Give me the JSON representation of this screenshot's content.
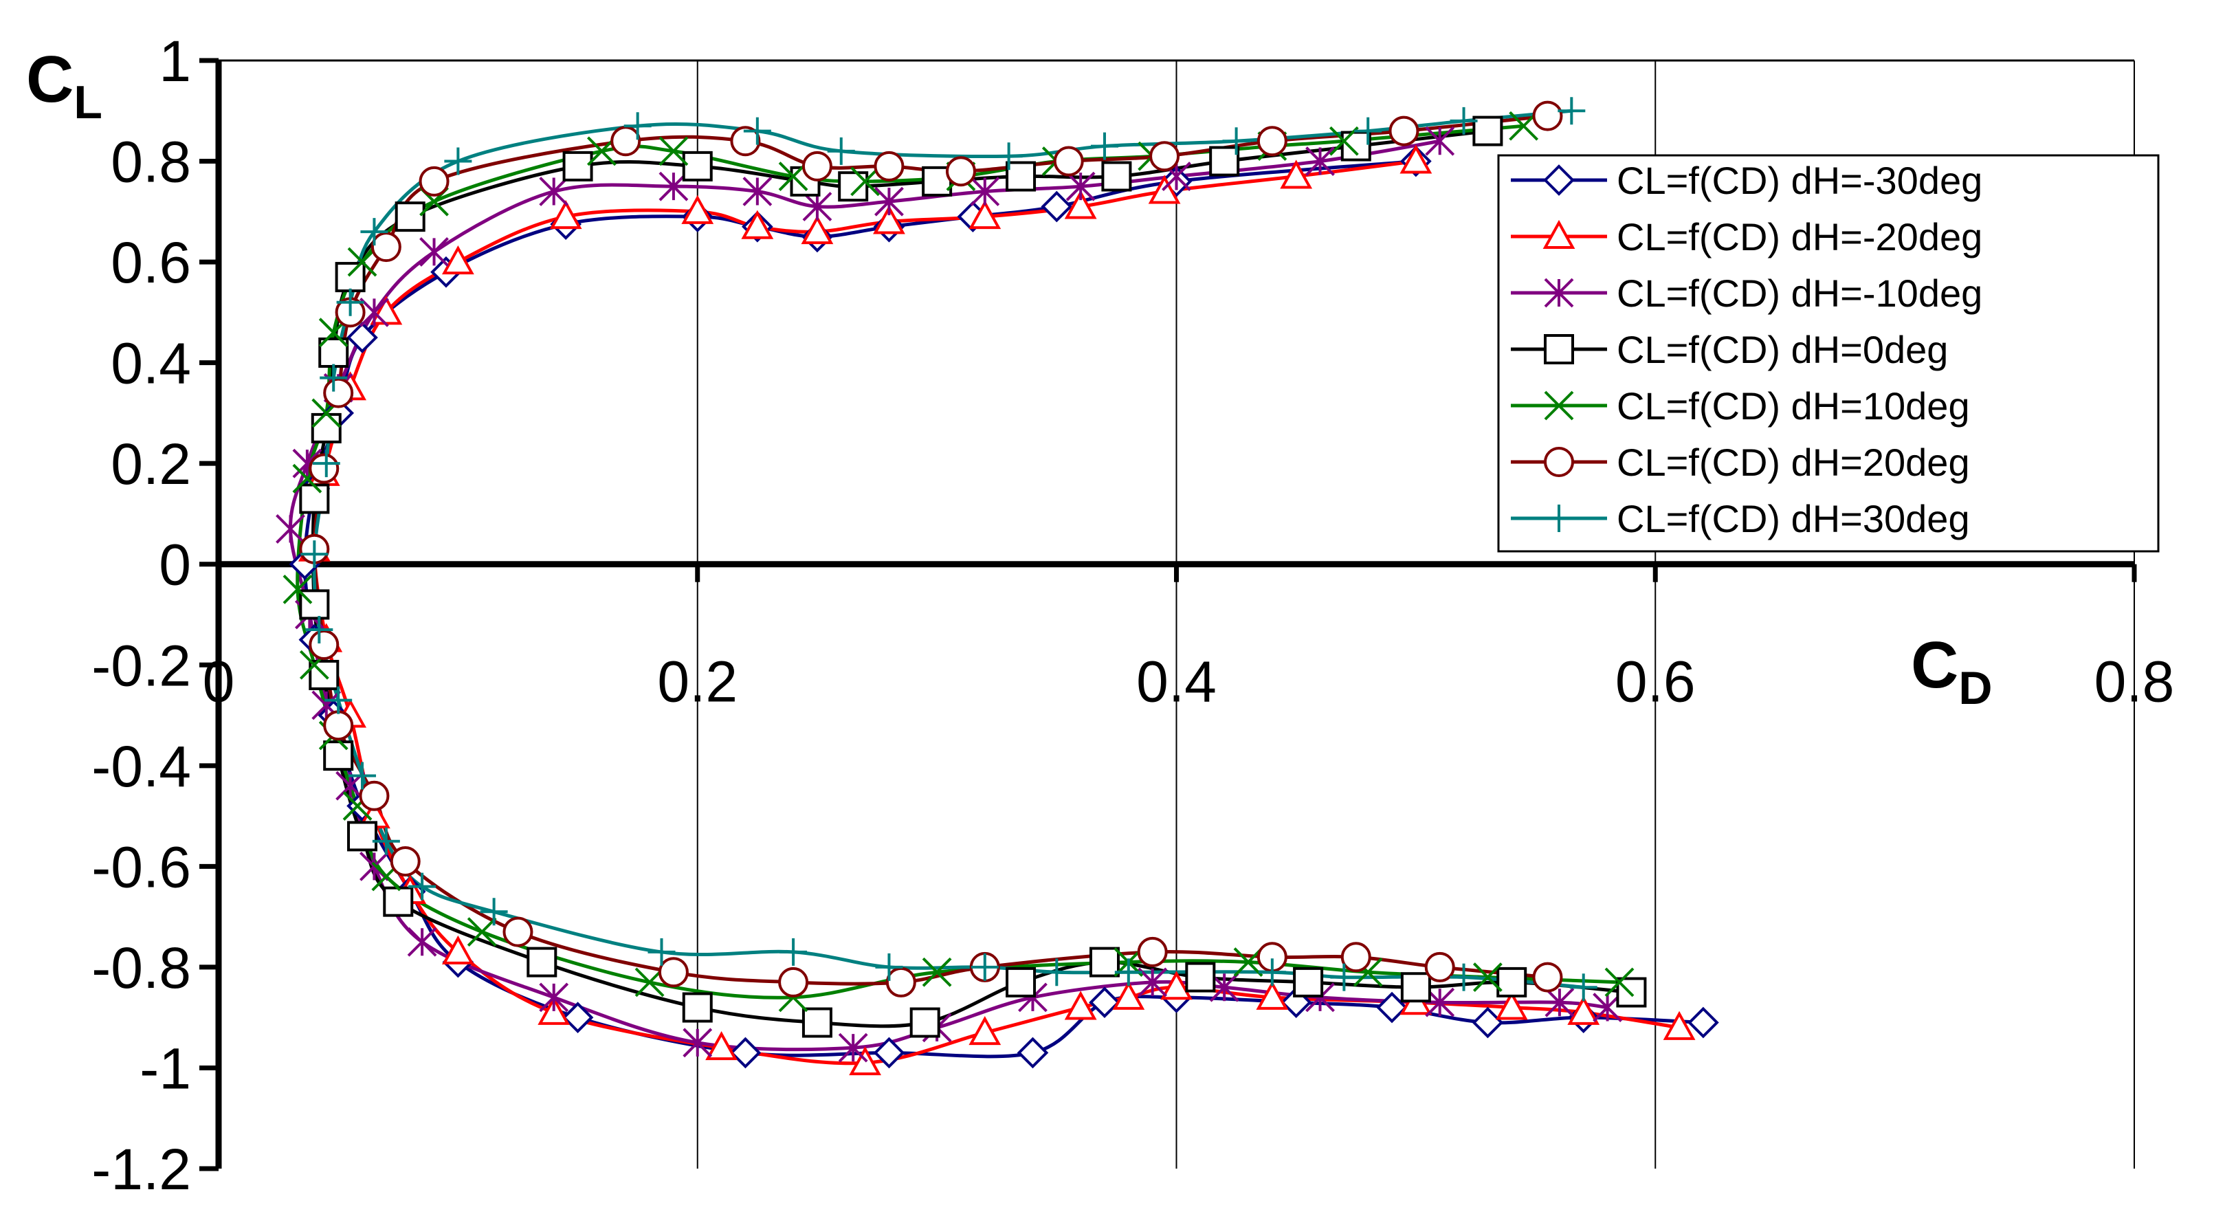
{
  "chart_data": {
    "type": "line",
    "title": "",
    "xlabel": "C",
    "xlabel_sub": "D",
    "ylabel": "C",
    "ylabel_sub": "L",
    "xlim": [
      0,
      0.8
    ],
    "ylim": [
      -1.2,
      1.0
    ],
    "x_ticks": [
      0,
      0.2,
      0.4,
      0.6,
      0.8
    ],
    "x_tick_labels": [
      "0",
      "0.2",
      "0.4",
      "0.6",
      "0.8"
    ],
    "y_ticks": [
      1,
      0.8,
      0.6,
      0.4,
      0.2,
      0,
      -0.2,
      -0.4,
      -0.6,
      -0.8,
      -1,
      -1.2
    ],
    "y_tick_labels": [
      "1",
      "0.8",
      "0.6",
      "0.4",
      "0.2",
      "0",
      "-0.2",
      "-0.4",
      "-0.6",
      "-0.8",
      "-1",
      "-1.2"
    ],
    "grid": "vertical",
    "legend_position": "top-right",
    "series": [
      {
        "name": "CL=f(CD) dH=-30deg",
        "color": "#000080",
        "marker": "diamond",
        "points": [
          [
            0.5,
            0.8
          ],
          [
            0.4,
            0.76
          ],
          [
            0.35,
            0.71
          ],
          [
            0.315,
            0.69
          ],
          [
            0.28,
            0.67
          ],
          [
            0.25,
            0.65
          ],
          [
            0.225,
            0.67
          ],
          [
            0.2,
            0.69
          ],
          [
            0.145,
            0.675
          ],
          [
            0.095,
            0.58
          ],
          [
            0.06,
            0.45
          ],
          [
            0.05,
            0.3
          ],
          [
            0.04,
            0.15
          ],
          [
            0.036,
            0
          ],
          [
            0.04,
            -0.15
          ],
          [
            0.048,
            -0.3
          ],
          [
            0.06,
            -0.48
          ],
          [
            0.08,
            -0.65
          ],
          [
            0.1,
            -0.79
          ],
          [
            0.15,
            -0.9
          ],
          [
            0.22,
            -0.97
          ],
          [
            0.28,
            -0.97
          ],
          [
            0.34,
            -0.97
          ],
          [
            0.37,
            -0.87
          ],
          [
            0.4,
            -0.86
          ],
          [
            0.45,
            -0.87
          ],
          [
            0.49,
            -0.88
          ],
          [
            0.53,
            -0.91
          ],
          [
            0.57,
            -0.9
          ],
          [
            0.62,
            -0.91
          ]
        ]
      },
      {
        "name": "CL=f(CD) dH=-20deg",
        "color": "#ff0000",
        "marker": "triangle",
        "points": [
          [
            0.5,
            0.8
          ],
          [
            0.45,
            0.77
          ],
          [
            0.395,
            0.74
          ],
          [
            0.36,
            0.71
          ],
          [
            0.32,
            0.69
          ],
          [
            0.28,
            0.68
          ],
          [
            0.25,
            0.66
          ],
          [
            0.225,
            0.67
          ],
          [
            0.2,
            0.7
          ],
          [
            0.145,
            0.69
          ],
          [
            0.1,
            0.6
          ],
          [
            0.07,
            0.5
          ],
          [
            0.055,
            0.35
          ],
          [
            0.044,
            0.18
          ],
          [
            0.04,
            0.03
          ],
          [
            0.045,
            -0.15
          ],
          [
            0.055,
            -0.3
          ],
          [
            0.065,
            -0.5
          ],
          [
            0.08,
            -0.65
          ],
          [
            0.1,
            -0.77
          ],
          [
            0.14,
            -0.89
          ],
          [
            0.21,
            -0.96
          ],
          [
            0.27,
            -0.99
          ],
          [
            0.32,
            -0.93
          ],
          [
            0.36,
            -0.88
          ],
          [
            0.38,
            -0.86
          ],
          [
            0.4,
            -0.84
          ],
          [
            0.44,
            -0.86
          ],
          [
            0.5,
            -0.87
          ],
          [
            0.54,
            -0.88
          ],
          [
            0.57,
            -0.89
          ],
          [
            0.61,
            -0.92
          ]
        ]
      },
      {
        "name": "CL=f(CD) dH=-10deg",
        "color": "#800080",
        "marker": "asterisk",
        "points": [
          [
            0.51,
            0.84
          ],
          [
            0.46,
            0.8
          ],
          [
            0.4,
            0.77
          ],
          [
            0.36,
            0.75
          ],
          [
            0.32,
            0.74
          ],
          [
            0.28,
            0.72
          ],
          [
            0.25,
            0.71
          ],
          [
            0.225,
            0.74
          ],
          [
            0.19,
            0.75
          ],
          [
            0.14,
            0.74
          ],
          [
            0.09,
            0.62
          ],
          [
            0.065,
            0.5
          ],
          [
            0.05,
            0.35
          ],
          [
            0.037,
            0.2
          ],
          [
            0.03,
            0.07
          ],
          [
            0.038,
            -0.1
          ],
          [
            0.045,
            -0.28
          ],
          [
            0.055,
            -0.44
          ],
          [
            0.065,
            -0.6
          ],
          [
            0.085,
            -0.75
          ],
          [
            0.14,
            -0.86
          ],
          [
            0.2,
            -0.95
          ],
          [
            0.265,
            -0.96
          ],
          [
            0.3,
            -0.92
          ],
          [
            0.34,
            -0.86
          ],
          [
            0.39,
            -0.83
          ],
          [
            0.42,
            -0.84
          ],
          [
            0.46,
            -0.86
          ],
          [
            0.51,
            -0.87
          ],
          [
            0.56,
            -0.87
          ],
          [
            0.58,
            -0.88
          ]
        ]
      },
      {
        "name": "CL=f(CD) dH=0deg",
        "color": "#000000",
        "marker": "square",
        "points": [
          [
            0.53,
            0.86
          ],
          [
            0.475,
            0.83
          ],
          [
            0.42,
            0.8
          ],
          [
            0.375,
            0.77
          ],
          [
            0.335,
            0.77
          ],
          [
            0.3,
            0.76
          ],
          [
            0.265,
            0.75
          ],
          [
            0.245,
            0.76
          ],
          [
            0.2,
            0.79
          ],
          [
            0.15,
            0.79
          ],
          [
            0.08,
            0.69
          ],
          [
            0.055,
            0.57
          ],
          [
            0.048,
            0.42
          ],
          [
            0.045,
            0.27
          ],
          [
            0.04,
            0.13
          ],
          [
            0.04,
            -0.08
          ],
          [
            0.044,
            -0.22
          ],
          [
            0.05,
            -0.38
          ],
          [
            0.06,
            -0.54
          ],
          [
            0.075,
            -0.67
          ],
          [
            0.135,
            -0.79
          ],
          [
            0.2,
            -0.88
          ],
          [
            0.25,
            -0.91
          ],
          [
            0.295,
            -0.91
          ],
          [
            0.335,
            -0.83
          ],
          [
            0.37,
            -0.79
          ],
          [
            0.41,
            -0.82
          ],
          [
            0.455,
            -0.83
          ],
          [
            0.5,
            -0.84
          ],
          [
            0.54,
            -0.83
          ],
          [
            0.59,
            -0.85
          ]
        ]
      },
      {
        "name": "CL=f(CD) dH=10deg",
        "color": "#008000",
        "marker": "x",
        "points": [
          [
            0.545,
            0.87
          ],
          [
            0.47,
            0.84
          ],
          [
            0.44,
            0.83
          ],
          [
            0.39,
            0.81
          ],
          [
            0.35,
            0.8
          ],
          [
            0.31,
            0.77
          ],
          [
            0.27,
            0.76
          ],
          [
            0.24,
            0.77
          ],
          [
            0.19,
            0.82
          ],
          [
            0.16,
            0.82
          ],
          [
            0.09,
            0.72
          ],
          [
            0.06,
            0.6
          ],
          [
            0.048,
            0.46
          ],
          [
            0.045,
            0.3
          ],
          [
            0.037,
            0.17
          ],
          [
            0.033,
            -0.05
          ],
          [
            0.04,
            -0.2
          ],
          [
            0.048,
            -0.34
          ],
          [
            0.058,
            -0.48
          ],
          [
            0.07,
            -0.62
          ],
          [
            0.11,
            -0.73
          ],
          [
            0.18,
            -0.83
          ],
          [
            0.24,
            -0.86
          ],
          [
            0.3,
            -0.81
          ],
          [
            0.38,
            -0.79
          ],
          [
            0.43,
            -0.79
          ],
          [
            0.48,
            -0.81
          ],
          [
            0.53,
            -0.82
          ],
          [
            0.585,
            -0.83
          ]
        ]
      },
      {
        "name": "CL=f(CD) dH=20deg",
        "color": "#800000",
        "marker": "circle",
        "points": [
          [
            0.555,
            0.89
          ],
          [
            0.495,
            0.86
          ],
          [
            0.44,
            0.84
          ],
          [
            0.395,
            0.81
          ],
          [
            0.355,
            0.8
          ],
          [
            0.31,
            0.78
          ],
          [
            0.28,
            0.79
          ],
          [
            0.25,
            0.79
          ],
          [
            0.22,
            0.84
          ],
          [
            0.17,
            0.84
          ],
          [
            0.09,
            0.76
          ],
          [
            0.07,
            0.63
          ],
          [
            0.055,
            0.5
          ],
          [
            0.05,
            0.34
          ],
          [
            0.044,
            0.19
          ],
          [
            0.04,
            0.03
          ],
          [
            0.044,
            -0.16
          ],
          [
            0.05,
            -0.32
          ],
          [
            0.065,
            -0.46
          ],
          [
            0.078,
            -0.59
          ],
          [
            0.125,
            -0.73
          ],
          [
            0.19,
            -0.81
          ],
          [
            0.24,
            -0.83
          ],
          [
            0.285,
            -0.83
          ],
          [
            0.32,
            -0.8
          ],
          [
            0.39,
            -0.77
          ],
          [
            0.44,
            -0.78
          ],
          [
            0.475,
            -0.78
          ],
          [
            0.51,
            -0.8
          ],
          [
            0.555,
            -0.82
          ]
        ]
      },
      {
        "name": "CL=f(CD) dH=30deg",
        "color": "#008080",
        "marker": "plus",
        "points": [
          [
            0.565,
            0.9
          ],
          [
            0.52,
            0.88
          ],
          [
            0.48,
            0.86
          ],
          [
            0.425,
            0.84
          ],
          [
            0.37,
            0.83
          ],
          [
            0.33,
            0.81
          ],
          [
            0.26,
            0.82
          ],
          [
            0.225,
            0.86
          ],
          [
            0.175,
            0.87
          ],
          [
            0.1,
            0.8
          ],
          [
            0.065,
            0.66
          ],
          [
            0.055,
            0.52
          ],
          [
            0.048,
            0.37
          ],
          [
            0.045,
            0.2
          ],
          [
            0.04,
            0.02
          ],
          [
            0.042,
            -0.13
          ],
          [
            0.05,
            -0.27
          ],
          [
            0.06,
            -0.42
          ],
          [
            0.07,
            -0.55
          ],
          [
            0.085,
            -0.64
          ],
          [
            0.115,
            -0.69
          ],
          [
            0.185,
            -0.77
          ],
          [
            0.24,
            -0.77
          ],
          [
            0.28,
            -0.8
          ],
          [
            0.32,
            -0.8
          ],
          [
            0.35,
            -0.81
          ],
          [
            0.38,
            -0.81
          ],
          [
            0.44,
            -0.81
          ],
          [
            0.47,
            -0.82
          ],
          [
            0.52,
            -0.82
          ],
          [
            0.57,
            -0.84
          ]
        ]
      }
    ]
  }
}
